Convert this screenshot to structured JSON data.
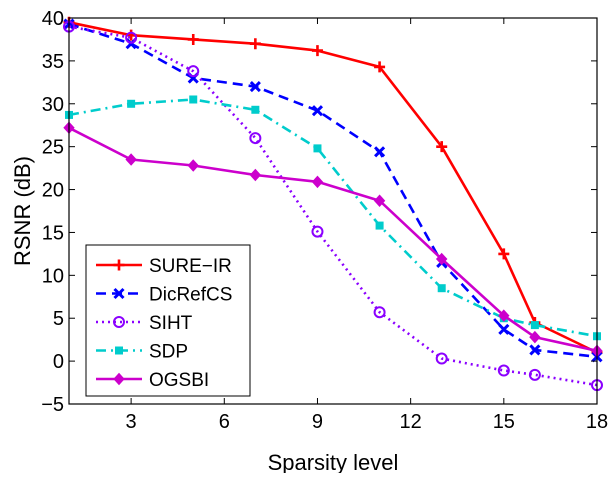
{
  "chart_data": {
    "type": "line",
    "title": "",
    "xlabel": "Sparsity level",
    "ylabel": "RSNR (dB)",
    "xlim": [
      1,
      18
    ],
    "ylim": [
      -5,
      40
    ],
    "x_ticks": [
      3,
      6,
      9,
      12,
      15,
      18
    ],
    "y_ticks": [
      -5,
      0,
      5,
      10,
      15,
      20,
      25,
      30,
      35,
      40
    ],
    "grid": false,
    "legend_position": "bottom-left",
    "series": [
      {
        "name": "SURE−IR",
        "color": "#ff0000",
        "line_style": "solid",
        "marker": "plus",
        "x": [
          1,
          3,
          5,
          7,
          9,
          11,
          13,
          15,
          16,
          18
        ],
        "y": [
          39.5,
          38.0,
          37.5,
          37.0,
          36.2,
          34.3,
          25.0,
          12.5,
          4.5,
          1.0
        ]
      },
      {
        "name": "DicRefCS",
        "color": "#0000ff",
        "line_style": "dashed",
        "marker": "x",
        "x": [
          1,
          3,
          5,
          7,
          9,
          11,
          13,
          15,
          16,
          18
        ],
        "y": [
          39.3,
          37.0,
          33.0,
          32.0,
          29.2,
          24.4,
          11.5,
          3.7,
          1.3,
          0.5
        ]
      },
      {
        "name": "SIHT",
        "color": "#8b00ff",
        "line_style": "dotted",
        "marker": "circle",
        "x": [
          1,
          3,
          5,
          7,
          9,
          11,
          13,
          15,
          16,
          18
        ],
        "y": [
          39.0,
          37.7,
          33.8,
          26.0,
          15.1,
          5.7,
          0.3,
          -1.1,
          -1.6,
          -2.8
        ]
      },
      {
        "name": "SDP",
        "color": "#00cccc",
        "line_style": "dashdot",
        "marker": "square",
        "x": [
          1,
          3,
          5,
          7,
          9,
          11,
          13,
          15,
          16,
          18
        ],
        "y": [
          28.7,
          30.0,
          30.5,
          29.3,
          24.8,
          15.8,
          8.5,
          5.0,
          4.2,
          2.9
        ]
      },
      {
        "name": "OGSBI",
        "color": "#cc00cc",
        "line_style": "solid",
        "marker": "diamond",
        "x": [
          1,
          3,
          5,
          7,
          9,
          11,
          13,
          15,
          16,
          18
        ],
        "y": [
          27.2,
          23.5,
          22.8,
          21.7,
          20.9,
          18.7,
          11.9,
          5.3,
          2.8,
          1.2
        ]
      }
    ]
  }
}
